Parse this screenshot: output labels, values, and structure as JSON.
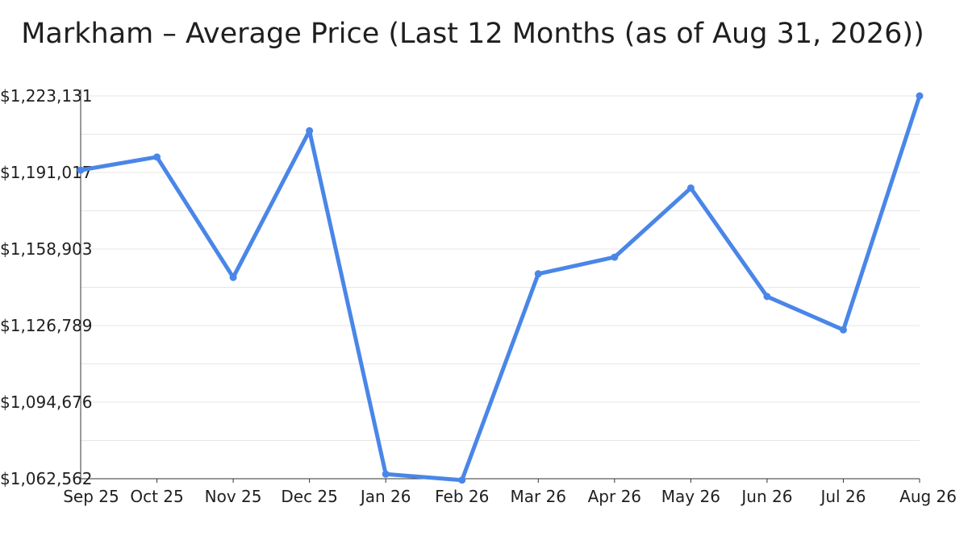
{
  "chart_data": {
    "type": "line",
    "title": "Markham – Average Price (Last 12 Months (as of Aug 31, 2026))",
    "xlabel": "",
    "ylabel": "",
    "categories": [
      "Sep 25",
      "Oct 25",
      "Nov 25",
      "Dec 25",
      "Jan 26",
      "Feb 26",
      "Mar 26",
      "Apr 26",
      "May 26",
      "Jun 26",
      "Jul 26",
      "Aug 26"
    ],
    "series": [
      {
        "values": [
          1192000,
          1197500,
          1147000,
          1208500,
          1064500,
          1062000,
          1148500,
          1155500,
          1184500,
          1139000,
          1125000,
          1223131
        ]
      }
    ],
    "ylim": [
      1062562,
      1223131
    ],
    "y_ticks": [
      1062562,
      1094676,
      1126789,
      1158903,
      1191017,
      1223131
    ],
    "y_tick_labels": [
      "$1,062,562",
      "$1,094,676",
      "$1,126,789",
      "$1,158,903",
      "$1,191,017",
      "$1,223,131"
    ],
    "grid": true,
    "legend": "none",
    "colors": {
      "line": "#4a86e8",
      "grid": "#e6e6e6",
      "axis": "#333333"
    }
  }
}
